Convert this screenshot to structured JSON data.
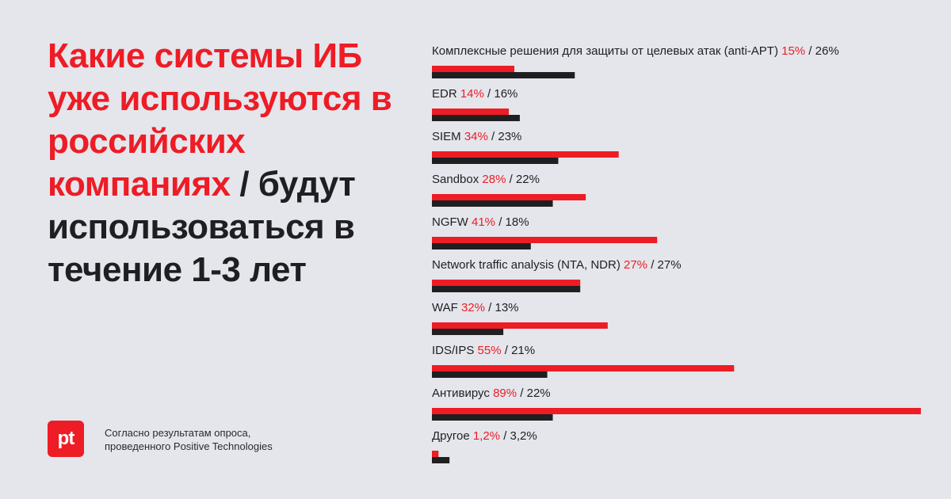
{
  "headline": {
    "red_part": "Какие системы ИБ уже используются в российских компаниях",
    "dark_part": " / будут использоваться в течение 1-3 лет"
  },
  "logo": {
    "text": "pt"
  },
  "source": {
    "line1": "Согласно результатам опроса,",
    "line2": "проведенного Positive Technologies"
  },
  "colors": {
    "current": "#ee1c25",
    "planned": "#1f1f22",
    "background": "#e4e6ec"
  },
  "chart_data": {
    "type": "bar",
    "orientation": "horizontal",
    "unit": "%",
    "series": [
      {
        "color": "#ee1c25",
        "values": [
          15,
          14,
          34,
          28,
          41,
          27,
          32,
          55,
          89,
          1.2
        ]
      },
      {
        "color": "#1f1f22",
        "values": [
          26,
          16,
          23,
          22,
          18,
          27,
          13,
          21,
          22,
          3.2
        ]
      }
    ],
    "categories": [
      "Комплексные решения для защиты от целевых атак (anti-APT)",
      "EDR",
      "SIEM",
      "Sandbox",
      "NGFW",
      "Network traffic analysis (NTA, NDR)",
      "WAF",
      "IDS/IPS",
      "Антивирус",
      "Другое"
    ],
    "current_labels": [
      "15%",
      "14%",
      "34%",
      "28%",
      "41%",
      "27%",
      "32%",
      "55%",
      "89%",
      "1,2%"
    ],
    "planned_labels": [
      "26%",
      "16%",
      "23%",
      "22%",
      "18%",
      "27%",
      "13%",
      "21%",
      "22%",
      "3,2%"
    ],
    "xlim": [
      0,
      89
    ],
    "grid": false,
    "legend": "none"
  }
}
